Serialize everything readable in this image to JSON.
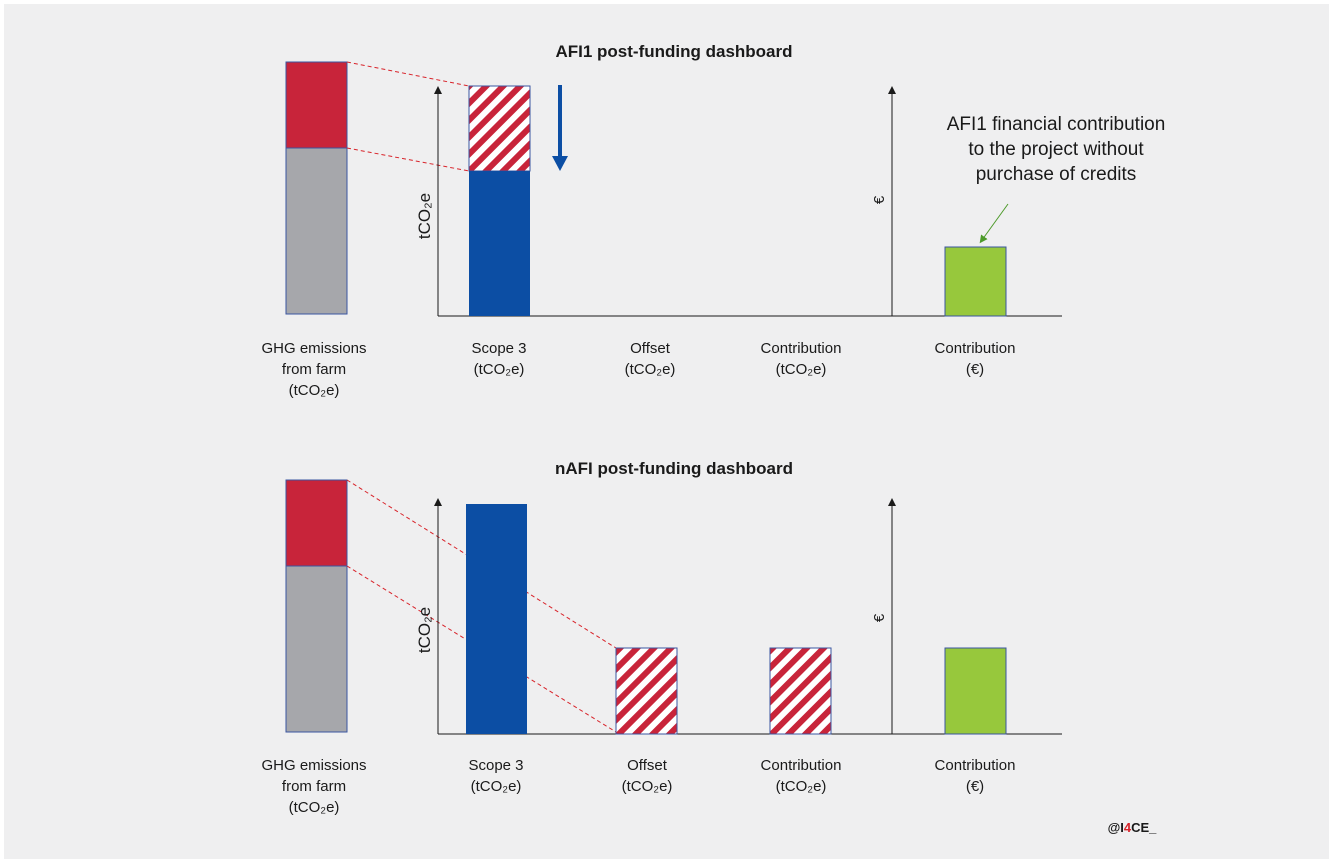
{
  "colors": {
    "background": "#efeff0",
    "red": "#c8243a",
    "grey": "#a6a7ab",
    "blue": "#0c4ea4",
    "green": "#97c83c",
    "dashed_line": "#d8232a"
  },
  "top": {
    "title": "AFI1 post-funding dashboard",
    "y_axis_left": "tCO₂e",
    "y_axis_right": "€",
    "annotation": [
      "AFI1 financial contribution",
      "to the project without",
      "purchase of credits"
    ],
    "farm_label": [
      "GHG emissions",
      "from farm",
      "(tCO₂e)"
    ],
    "categories": [
      [
        "Scope 3",
        "(tCO₂e)"
      ],
      [
        "Offset",
        "(tCO₂e)"
      ],
      [
        "Contribution",
        "(tCO₂e)"
      ],
      [
        "Contribution",
        "(€)"
      ]
    ]
  },
  "bottom": {
    "title": "nAFI post-funding dashboard",
    "y_axis_left": "tCO₂e",
    "y_axis_right": "€",
    "farm_label": [
      "GHG emissions",
      "from farm",
      "(tCO₂e)"
    ],
    "categories": [
      [
        "Scope 3",
        "(tCO₂e)"
      ],
      [
        "Offset",
        "(tCO₂e)"
      ],
      [
        "Contribution",
        "(tCO₂e)"
      ],
      [
        "Contribution",
        "(€)"
      ]
    ]
  },
  "credit": {
    "prefix": "@I",
    "highlight": "4",
    "suffix": "CE_"
  }
}
